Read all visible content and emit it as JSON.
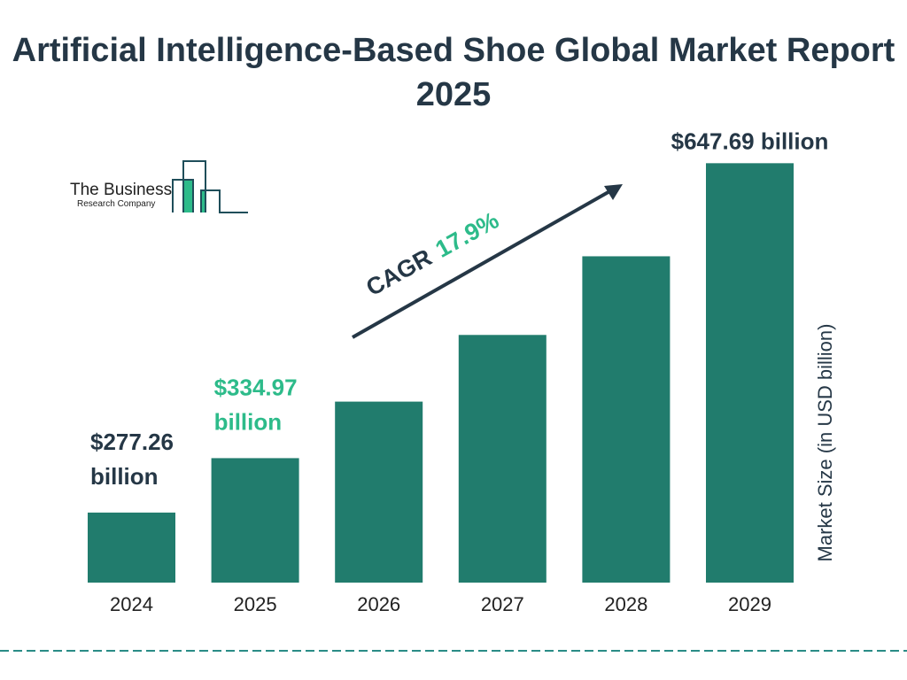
{
  "title": "Artificial Intelligence-Based Shoe Global Market Report 2025",
  "logo": {
    "line1": "The Business",
    "line2": "Research Company"
  },
  "colors": {
    "bar": "#217c6d",
    "accent": "#2dbb8a",
    "text": "#253746",
    "divider": "#2a8c86"
  },
  "chart_data": {
    "type": "bar",
    "title": "Artificial Intelligence-Based Shoe Global Market Report 2025",
    "xlabel": "",
    "ylabel": "Market Size (in USD billion)",
    "categories": [
      "2024",
      "2025",
      "2026",
      "2027",
      "2028",
      "2029"
    ],
    "values": [
      277.26,
      334.97,
      394.9,
      465.6,
      549.0,
      647.69
    ],
    "ylim": [
      203,
      648
    ],
    "grid": false,
    "data_labels": [
      "$277.26 billion",
      "$334.97 billion",
      "",
      "",
      "",
      "$647.69 billion"
    ],
    "annotation": {
      "label": "CAGR",
      "value": "17.9%"
    }
  }
}
